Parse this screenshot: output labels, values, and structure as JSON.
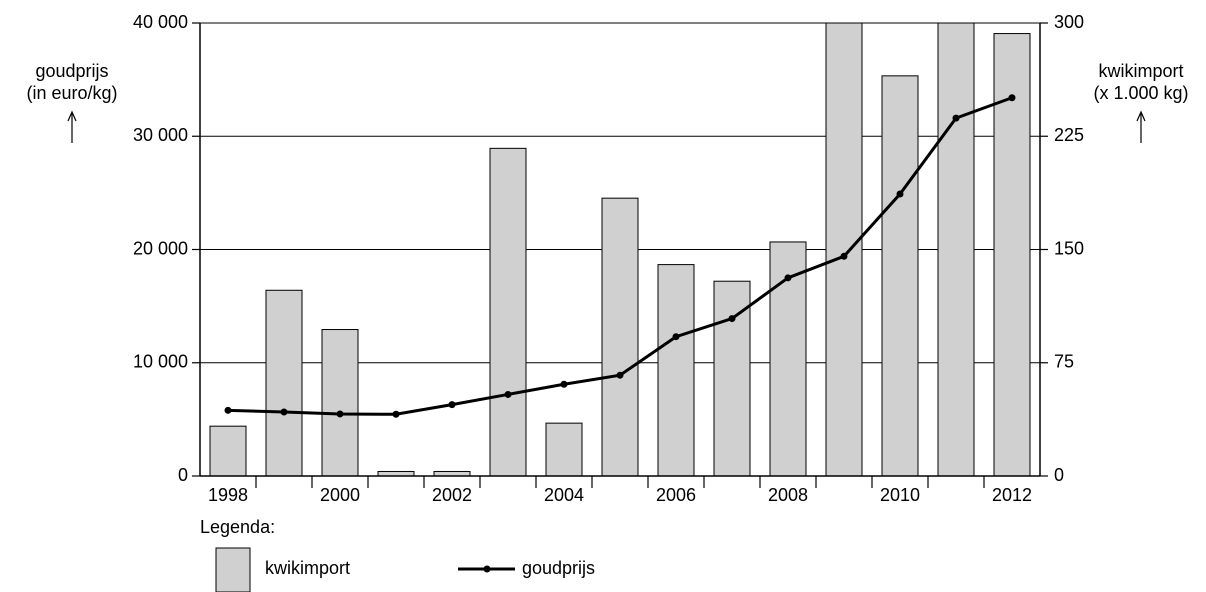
{
  "chart_data": {
    "type": "bar_line",
    "categories": [
      "1998",
      null,
      "2000",
      null,
      "2002",
      null,
      "2004",
      null,
      "2006",
      null,
      "2008",
      null,
      "2010",
      null,
      "2012"
    ],
    "series": [
      {
        "name": "kwikimport",
        "type": "bar",
        "axis": "y2",
        "color": "#d0d0d0",
        "values": [
          33,
          123,
          97,
          3,
          3,
          217,
          35,
          184,
          140,
          129,
          155,
          300,
          265,
          300,
          293
        ]
      },
      {
        "name": "goudprijs",
        "type": "line",
        "axis": "y",
        "color": "#000000",
        "values": [
          5800,
          5650,
          5480,
          5450,
          6300,
          7200,
          8100,
          8900,
          12300,
          13900,
          17500,
          19400,
          24900,
          31600,
          33400
        ]
      }
    ],
    "ylabel": [
      "goudprijs",
      "(in euro/kg)"
    ],
    "y2label": [
      "kwikimport",
      "(x 1.000 kg)"
    ],
    "ylim": [
      0,
      40000
    ],
    "yticks": [
      0,
      {
        "value": 10000,
        "label": "10 000"
      },
      {
        "value": 20000,
        "label": "20 000"
      },
      {
        "value": 30000,
        "label": "30 000"
      },
      {
        "value": 40000,
        "label": "40 000"
      }
    ],
    "y2lim": [
      0,
      300
    ],
    "y2ticks": [
      0,
      75,
      150,
      225,
      300
    ],
    "grid": true,
    "legend_title": "Legenda:"
  }
}
